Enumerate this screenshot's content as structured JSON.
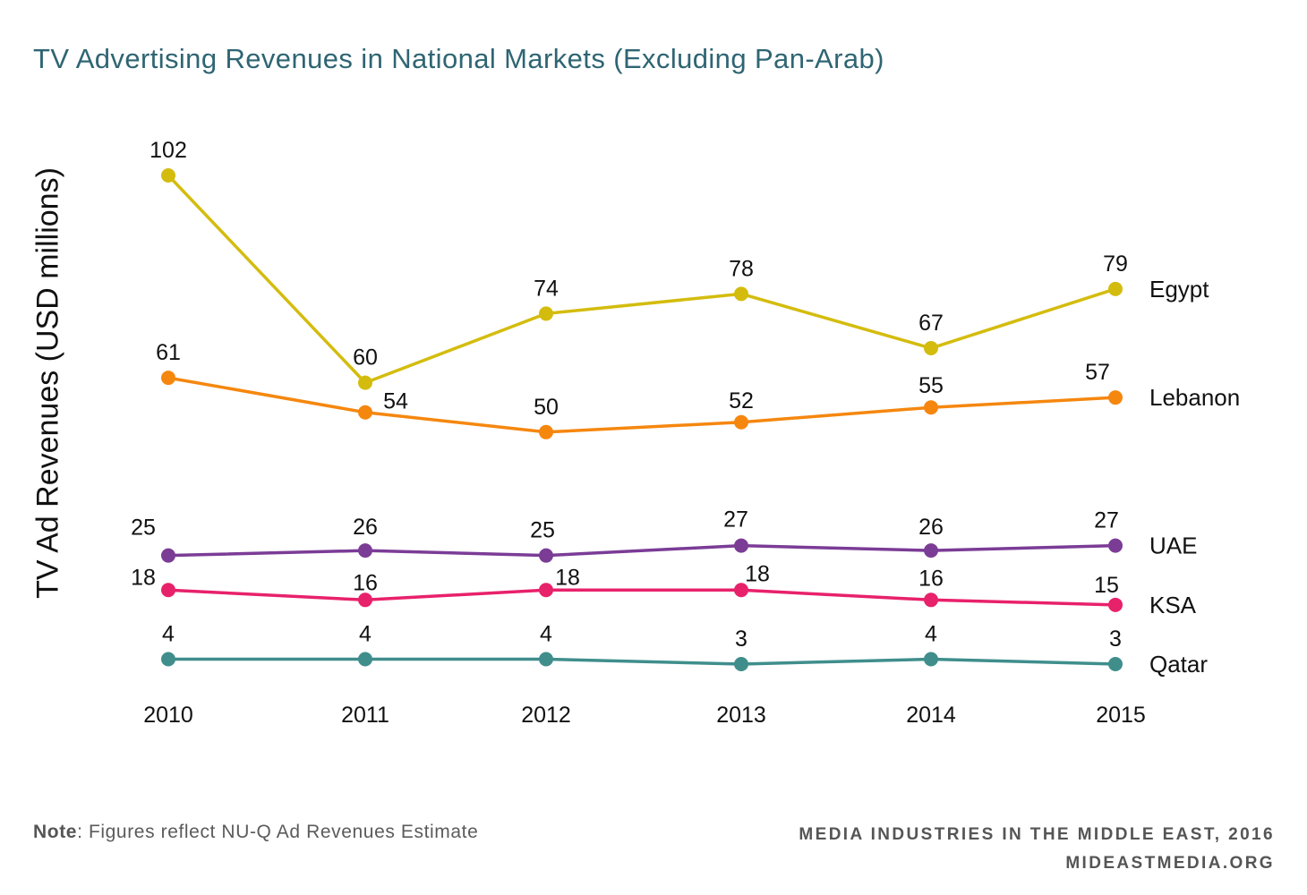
{
  "title": "TV Advertising Revenues in National Markets (Excluding Pan-Arab)",
  "note": {
    "label": "Note",
    "text": ": Figures reflect NU-Q Ad Revenues Estimate"
  },
  "credits": {
    "line1": "MEDIA INDUSTRIES IN THE MIDDLE EAST, 2016",
    "line2": "MIDEASTMEDIA.ORG"
  },
  "chart_data": {
    "type": "line",
    "title": "TV Advertising Revenues in National Markets (Excluding Pan-Arab)",
    "xlabel": "",
    "ylabel": "TV Ad Revenues (USD millions)",
    "x": [
      "2010",
      "2011",
      "2012",
      "2013",
      "2014",
      "2015"
    ],
    "ylim": [
      3,
      102
    ],
    "grid": false,
    "legend": "direct labels at right end of each line",
    "series": [
      {
        "name": "Egypt",
        "color": "#d4bc0e",
        "values": [
          102,
          60,
          74,
          78,
          67,
          79
        ]
      },
      {
        "name": "Lebanon",
        "color": "#f5870f",
        "values": [
          61,
          54,
          50,
          52,
          55,
          57
        ]
      },
      {
        "name": "UAE",
        "color": "#7b3c96",
        "values": [
          25,
          26,
          25,
          27,
          26,
          27
        ]
      },
      {
        "name": "KSA",
        "color": "#e8216b",
        "values": [
          18,
          16,
          18,
          18,
          16,
          15
        ]
      },
      {
        "name": "Qatar",
        "color": "#3f8e8c",
        "values": [
          4,
          4,
          4,
          3,
          4,
          3
        ]
      }
    ]
  }
}
